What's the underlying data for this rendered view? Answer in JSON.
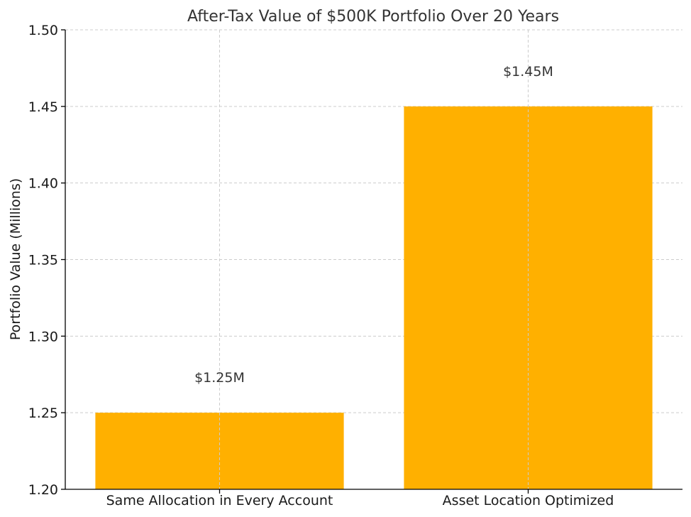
{
  "chart_data": {
    "type": "bar",
    "title": "After-Tax Value of $500K Portfolio Over 20 Years",
    "xlabel": "",
    "ylabel": "Portfolio Value (Millions)",
    "categories": [
      "Same Allocation in Every Account",
      "Asset Location Optimized"
    ],
    "values": [
      1.25,
      1.45
    ],
    "data_labels": [
      "$1.25M",
      "$1.45M"
    ],
    "ylim": [
      1.2,
      1.5
    ],
    "yticks": [
      1.2,
      1.25,
      1.3,
      1.35,
      1.4,
      1.45,
      1.5
    ],
    "ytick_labels": [
      "1.20",
      "1.25",
      "1.30",
      "1.35",
      "1.40",
      "1.45",
      "1.50"
    ],
    "grid": true,
    "bar_color": "#FFB000"
  }
}
